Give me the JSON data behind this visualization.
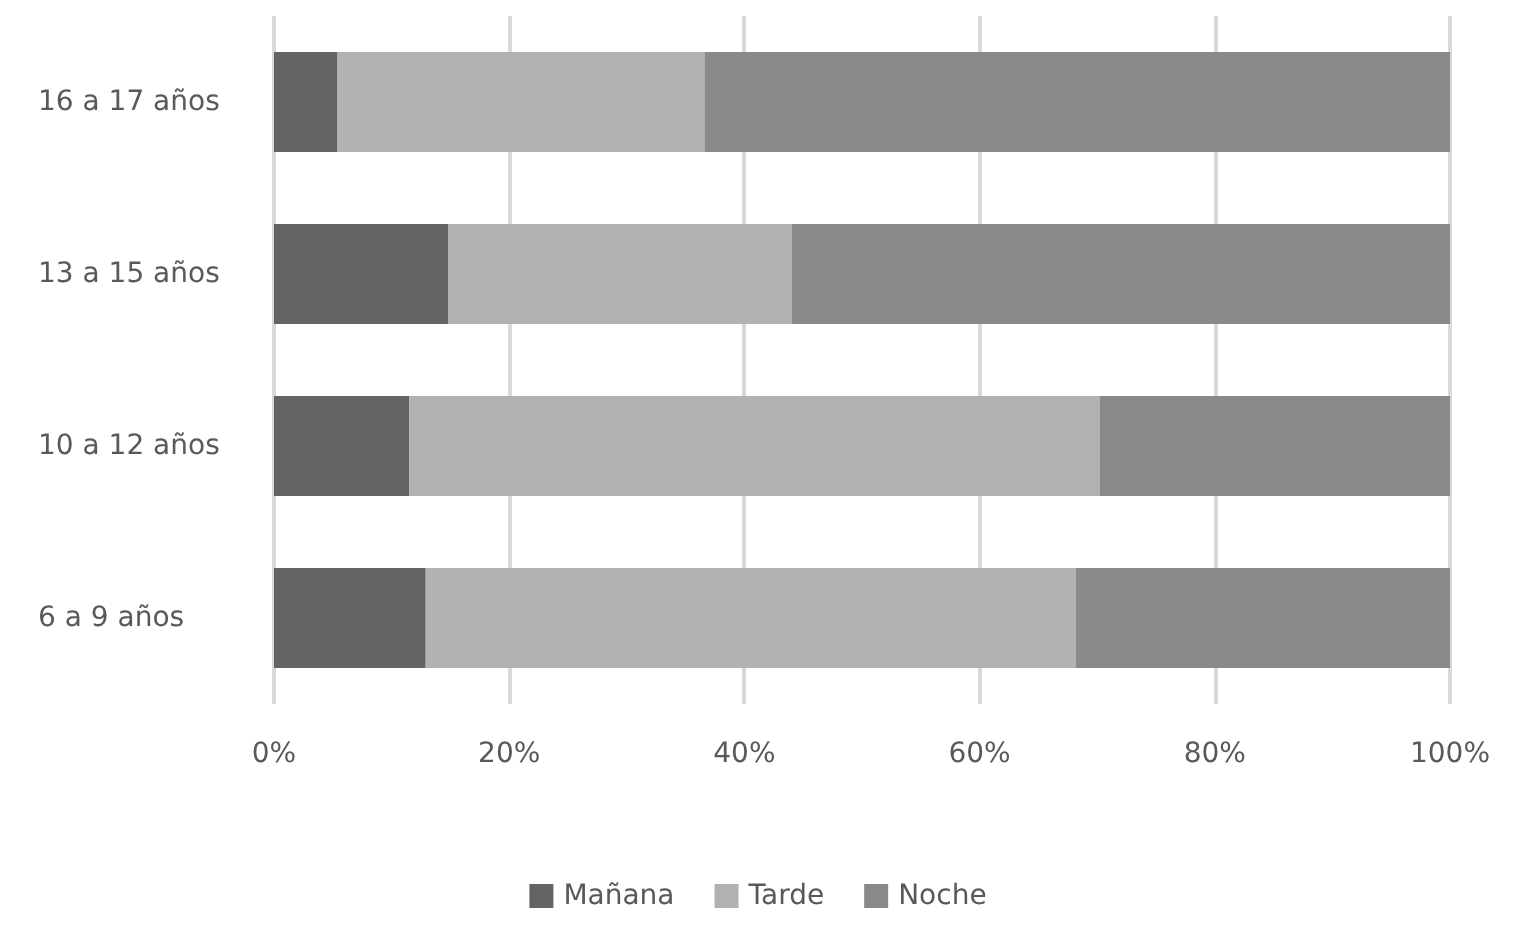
{
  "chart_data": {
    "type": "bar",
    "orientation": "horizontal",
    "stacked": true,
    "categories": [
      "16 a 17 años",
      "13 a 15 años",
      "10 a 12 años",
      "6 a 9 años"
    ],
    "series": [
      {
        "name": "Mañana",
        "color": "#636363",
        "values": [
          5.4,
          14.8,
          11.5,
          12.9
        ]
      },
      {
        "name": "Tarde",
        "color": "#b2b2b2",
        "values": [
          31.2,
          29.2,
          58.7,
          55.3
        ]
      },
      {
        "name": "Noche",
        "color": "#898989",
        "values": [
          63.4,
          56.0,
          29.8,
          31.8
        ]
      }
    ],
    "xlim": [
      0,
      100
    ],
    "xticks": [
      {
        "value": 0,
        "label": "0%"
      },
      {
        "value": 20,
        "label": "20%"
      },
      {
        "value": 40,
        "label": "40%"
      },
      {
        "value": 60,
        "label": "60%"
      },
      {
        "value": 80,
        "label": "80%"
      },
      {
        "value": 100,
        "label": "100%"
      }
    ],
    "grid": "x",
    "legend": "bottom"
  }
}
